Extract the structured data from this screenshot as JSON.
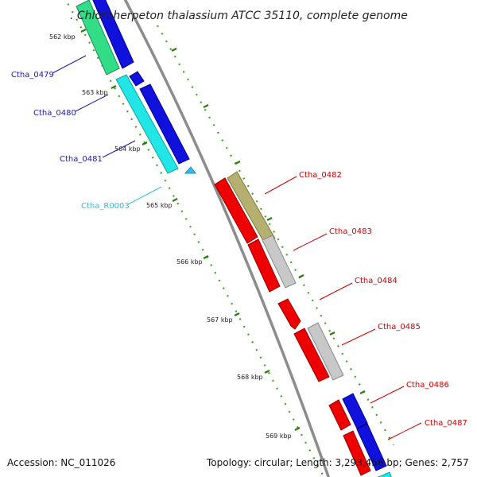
{
  "header": {
    "title": ". Chloroherpeton thalassium ATCC 35110, complete genome"
  },
  "footer": {
    "accession": "Accession: NC_011026",
    "stats": "Topology: circular; Length: 3,293,456 bp; Genes: 2,757"
  },
  "colors": {
    "backbone": "#8c8c8c",
    "tick_major": "#2a7a0f",
    "tick_minor": "#3fa51a",
    "left_label": "#1a1aa8",
    "left_label_rna": "#33bbdd",
    "right_label": "#cc0000",
    "red_gene": "#ee0000",
    "blue_gene": "#1111dd",
    "cyan_gene": "#22e6e6",
    "green_gene": "#33dd88",
    "olive_gene": "#b5b070",
    "gray_gene": "#c0c0c0"
  },
  "scale_labels": [
    "562 kbp",
    "563 kbp",
    "564 kbp",
    "565 kbp",
    "566 kbp",
    "567 kbp",
    "568 kbp",
    "569 kbp"
  ],
  "genes_left": [
    {
      "label": "Ctha_0479",
      "color": "#1a1aa8"
    },
    {
      "label": "Ctha_0480",
      "color": "#1a1aa8"
    },
    {
      "label": "Ctha_0481",
      "color": "#1a1aa8"
    },
    {
      "label": "Ctha_R0003",
      "color": "#33bbdd"
    }
  ],
  "genes_right": [
    {
      "label": "Ctha_0482",
      "color": "#cc0000"
    },
    {
      "label": "Ctha_0483",
      "color": "#cc0000"
    },
    {
      "label": "Ctha_0484",
      "color": "#cc0000"
    },
    {
      "label": "Ctha_0485",
      "color": "#cc0000"
    },
    {
      "label": "Ctha_0486",
      "color": "#cc0000"
    },
    {
      "label": "Ctha_0487",
      "color": "#cc0000"
    }
  ]
}
